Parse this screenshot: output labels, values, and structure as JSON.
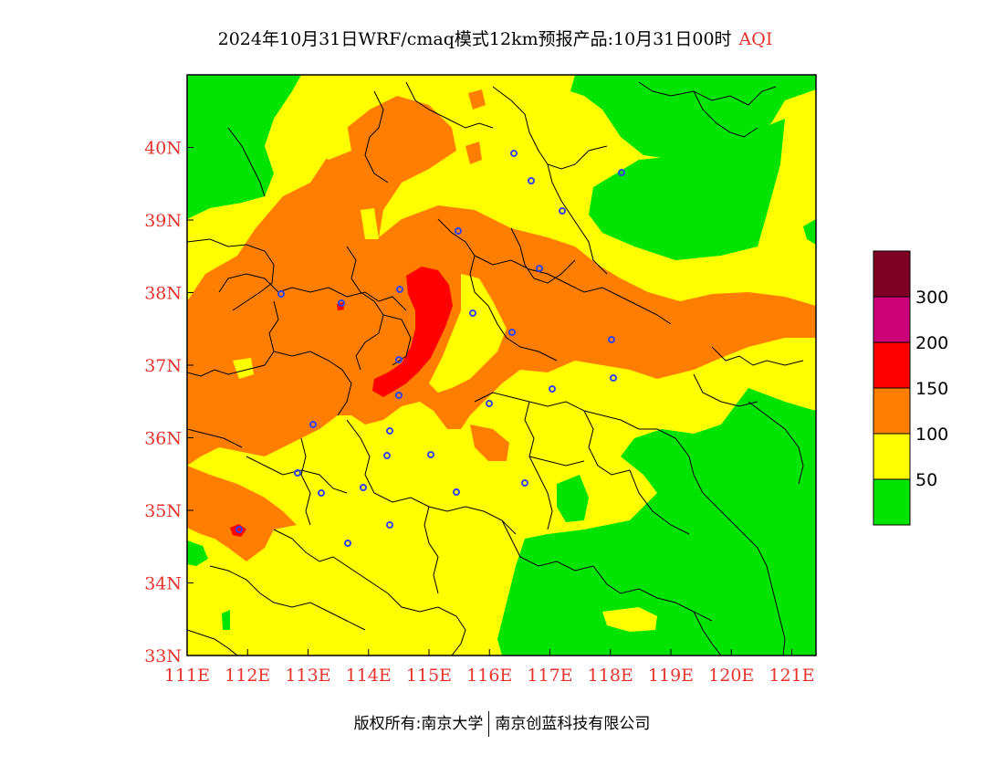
{
  "title": {
    "main": "2024年10月31日WRF/cmaq模式12km预报产品:10月31日00时",
    "product": "AQI"
  },
  "map_extent": {
    "lon_min": 111,
    "lon_max": 121.4,
    "lat_min": 33,
    "lat_max": 41
  },
  "axes": {
    "lon_ticks": [
      "111E",
      "112E",
      "113E",
      "114E",
      "115E",
      "116E",
      "117E",
      "118E",
      "119E",
      "120E",
      "121E"
    ],
    "lat_ticks": [
      "33N",
      "34N",
      "35N",
      "36N",
      "37N",
      "38N",
      "39N",
      "40N"
    ]
  },
  "legend": {
    "labels": [
      "50",
      "100",
      "150",
      "200",
      "300"
    ],
    "colors": [
      "#00e400",
      "#ffff00",
      "#ff7e00",
      "#ff0000",
      "#cc0077",
      "#7e0023"
    ]
  },
  "colors": {
    "good": "#00e400",
    "moderate": "#ffff00",
    "sensitive": "#ff7e00",
    "unhealthy": "#ff0000",
    "axis": "#e8322d",
    "marker": "#3344ee"
  },
  "footer": {
    "copyright": "版权所有:南京大学",
    "company": "南京创蓝科技有限公司"
  }
}
